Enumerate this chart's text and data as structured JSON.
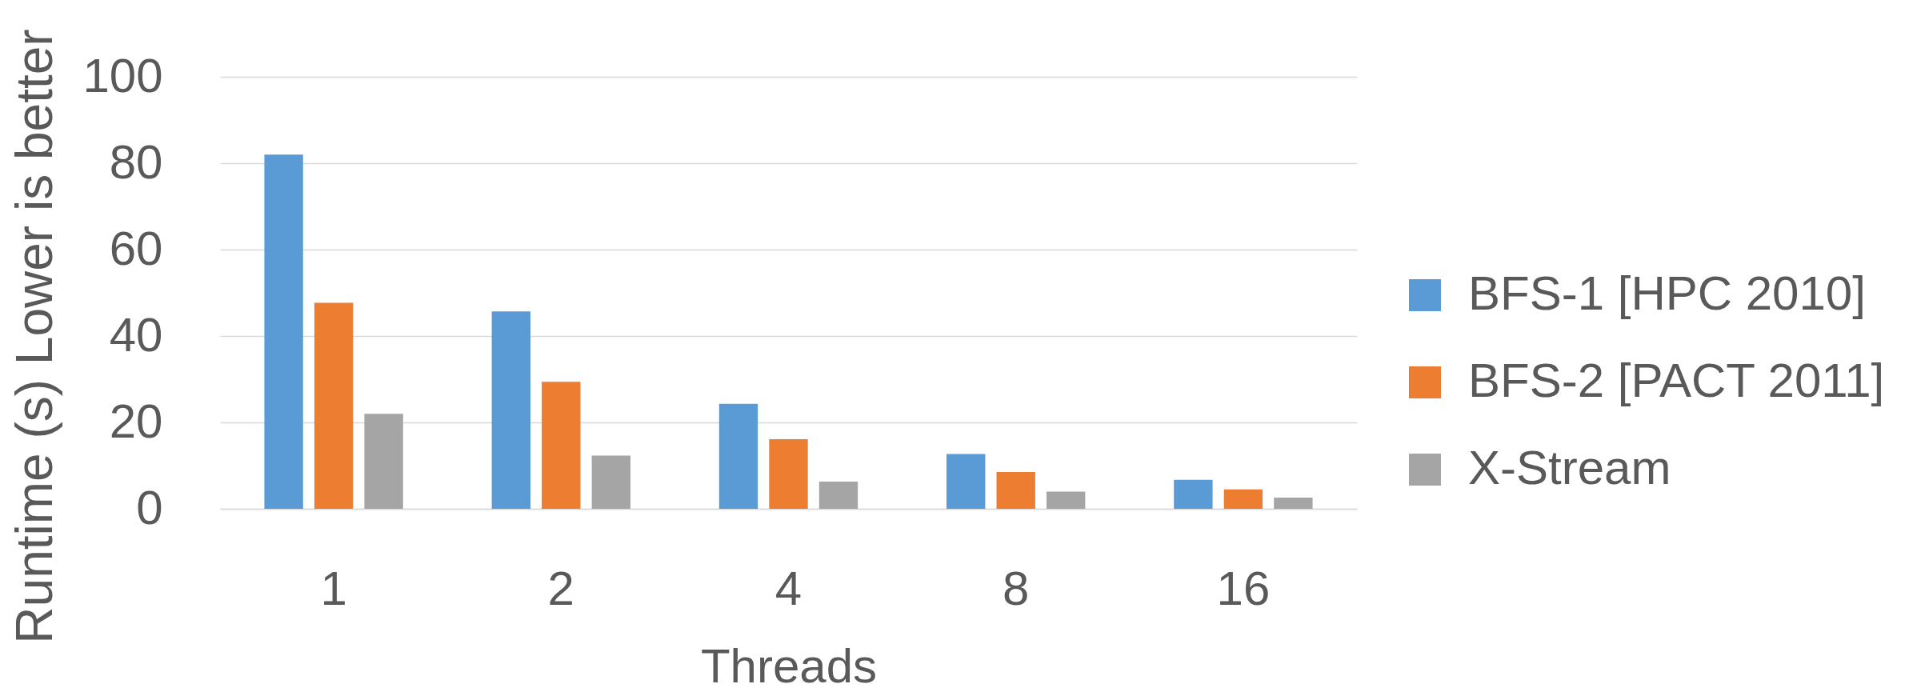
{
  "chart_data": {
    "type": "bar",
    "xlabel": "Threads",
    "ylabel": "Runtime (s) Lower is better",
    "categories": [
      "1",
      "2",
      "4",
      "8",
      "16"
    ],
    "series": [
      {
        "name": "BFS-1 [HPC 2010]",
        "color": "#5b9bd5",
        "values": [
          82,
          45.7,
          24.3,
          12.7,
          6.7
        ]
      },
      {
        "name": "BFS-2 [PACT 2011]",
        "color": "#ed7d31",
        "values": [
          47.7,
          29.4,
          16.1,
          8.5,
          4.5
        ]
      },
      {
        "name": "X-Stream",
        "color": "#a5a5a5",
        "values": [
          22,
          12.3,
          6.3,
          4,
          2.6
        ]
      }
    ],
    "ylim": [
      0,
      100
    ],
    "yticks": [
      0,
      20,
      40,
      60,
      80,
      100
    ],
    "grid": "y",
    "legend": "right"
  }
}
